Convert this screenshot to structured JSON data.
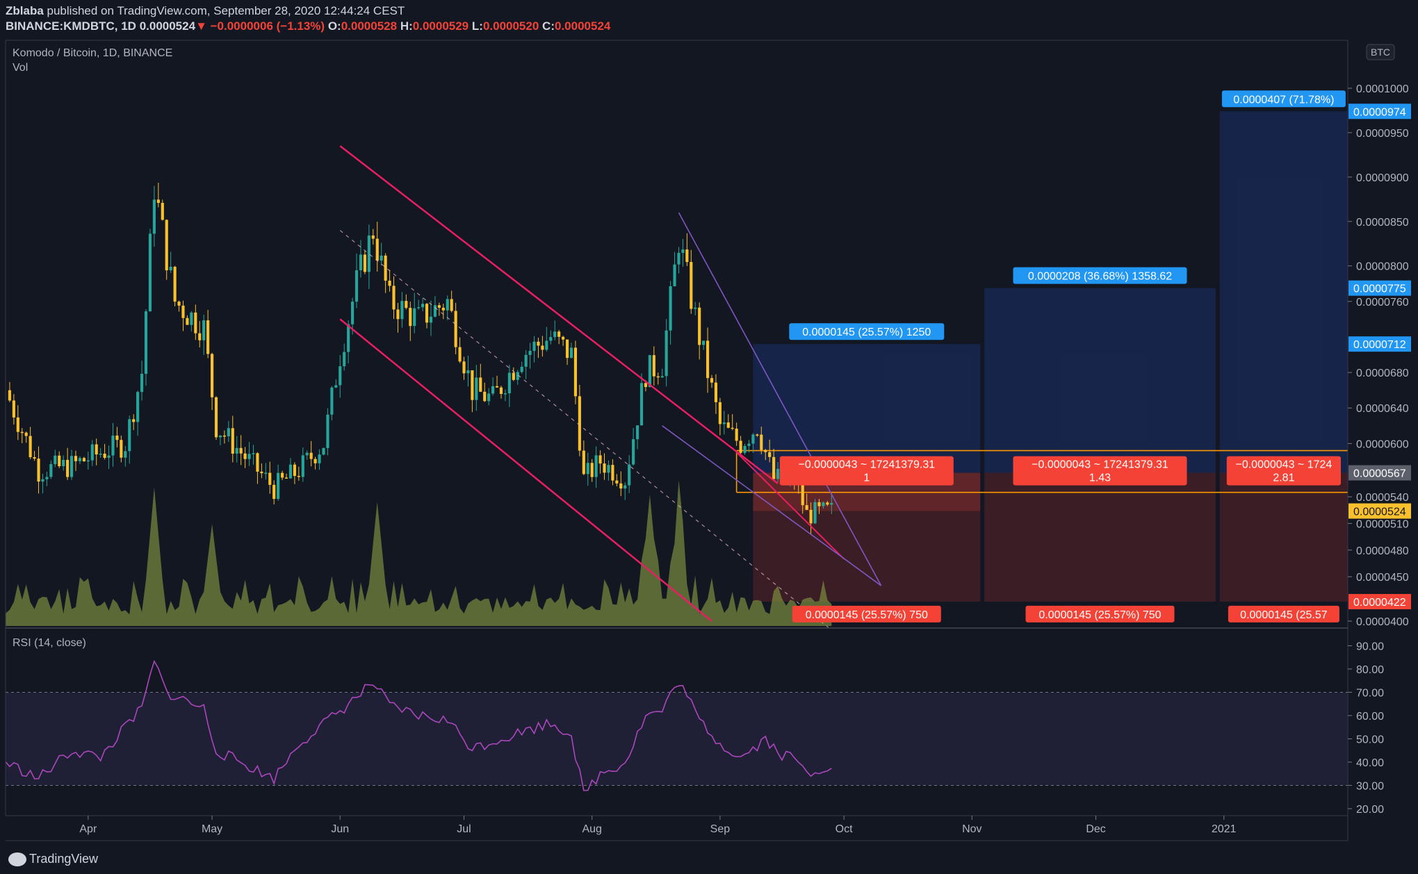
{
  "header": {
    "line1_user": "Zblaba",
    "line1_rest": " published on TradingView.com, September 28, 2020 12:44:24 CEST",
    "symbol": "BINANCE:KMDBTC, 1D",
    "last": "0.0000524",
    "change": "−0.0000006 (−1.13%)",
    "o_label": "O:",
    "o": "0.0000528",
    "h_label": "H:",
    "h": "0.0000529",
    "l_label": "L:",
    "l": "0.0000520",
    "c_label": "C:",
    "c": "0.0000524"
  },
  "footer": {
    "brand": "TradingView"
  },
  "colors": {
    "background": "#131722",
    "up": "#26a69a",
    "down": "#fbc02d",
    "target": "#2196f3",
    "stop": "#f44336",
    "channel": "#e91e63",
    "wedge": "#7e57c2",
    "rsi": "#ab47bc"
  },
  "chart_data": {
    "type": "candlestick",
    "title": "Komodo / Bitcoin, 1D, BINANCE",
    "volume_label": "Vol",
    "currency": "BTC",
    "price_axis_ticks": [
      "0.0001000",
      "0.0000950",
      "0.0000900",
      "0.0000850",
      "0.0000800",
      "0.0000760",
      "0.0000680",
      "0.0000640",
      "0.0000600",
      "0.0000540",
      "0.0000510",
      "0.0000480",
      "0.0000450",
      "0.0000400"
    ],
    "price_range": [
      3.93e-05,
      0.0001054
    ],
    "price_markers": [
      {
        "value": "0.0000974",
        "type": "target"
      },
      {
        "value": "0.0000775",
        "type": "target"
      },
      {
        "value": "0.0000712",
        "type": "target"
      },
      {
        "value": "0.0000567",
        "type": "entry"
      },
      {
        "value": "0.0000524",
        "type": "last"
      },
      {
        "value": "0.0000422",
        "type": "stop"
      }
    ],
    "time_axis": [
      "Apr",
      "May",
      "Jun",
      "Jul",
      "Aug",
      "Sep",
      "Oct",
      "Nov",
      "Dec",
      "2021"
    ],
    "time_range": [
      "2020-03-12",
      "2021-01-31"
    ],
    "price_path": [
      [
        "2020-03-12",
        6.6e-05
      ],
      [
        "2020-03-20",
        5.7e-05
      ],
      [
        "2020-03-28",
        5.75e-05
      ],
      [
        "2020-04-04",
        5.9e-05
      ],
      [
        "2020-04-10",
        6e-05
      ],
      [
        "2020-04-14",
        6.8e-05
      ],
      [
        "2020-04-17",
        8.9e-05
      ],
      [
        "2020-04-22",
        7.6e-05
      ],
      [
        "2020-04-29",
        7.3e-05
      ],
      [
        "2020-05-02",
        6.2e-05
      ],
      [
        "2020-05-10",
        5.8e-05
      ],
      [
        "2020-05-16",
        5.5e-05
      ],
      [
        "2020-05-22",
        5.7e-05
      ],
      [
        "2020-05-28",
        6e-05
      ],
      [
        "2020-06-01",
        7e-05
      ],
      [
        "2020-06-05",
        7.8e-05
      ],
      [
        "2020-06-09",
        8.4e-05
      ],
      [
        "2020-06-13",
        7.6e-05
      ],
      [
        "2020-06-20",
        7.4e-05
      ],
      [
        "2020-06-27",
        7.6e-05
      ],
      [
        "2020-07-03",
        6.6e-05
      ],
      [
        "2020-07-08",
        6.5e-05
      ],
      [
        "2020-07-15",
        7e-05
      ],
      [
        "2020-07-22",
        7.2e-05
      ],
      [
        "2020-07-27",
        7e-05
      ],
      [
        "2020-07-30",
        5.6e-05
      ],
      [
        "2020-08-03",
        5.8e-05
      ],
      [
        "2020-08-09",
        5.6e-05
      ],
      [
        "2020-08-14",
        6.8e-05
      ],
      [
        "2020-08-18",
        6.9e-05
      ],
      [
        "2020-08-22",
        8.3e-05
      ],
      [
        "2020-08-27",
        7.2e-05
      ],
      [
        "2020-09-01",
        6.2e-05
      ],
      [
        "2020-09-06",
        6e-05
      ],
      [
        "2020-09-10",
        6.2e-05
      ],
      [
        "2020-09-14",
        5.6e-05
      ],
      [
        "2020-09-19",
        5.6e-05
      ],
      [
        "2020-09-22",
        5.2e-05
      ],
      [
        "2020-09-28",
        5.24e-05
      ]
    ],
    "volume_peaks": [
      [
        "2020-04-17",
        0.95
      ],
      [
        "2020-05-01",
        0.7
      ],
      [
        "2020-06-10",
        0.85
      ],
      [
        "2020-08-15",
        0.9
      ],
      [
        "2020-08-22",
        0.85
      ]
    ],
    "projections": [
      {
        "target_label": "0.0000145 (25.57%) 1250",
        "stop_label": "0.0000145 (25.57%) 750",
        "risk_label_line1": "−0.0000043 ~ 17241379.31",
        "risk_label_line2": "1",
        "target_price": 7.12e-05,
        "entry_price": 5.67e-05,
        "stop_price": 4.22e-05
      },
      {
        "target_label": "0.0000208 (36.68%) 1358.62",
        "stop_label": "0.0000145 (25.57%) 750",
        "risk_label_line1": "−0.0000043 ~ 17241379.31",
        "risk_label_line2": "1.43",
        "target_price": 7.75e-05,
        "entry_price": 5.67e-05,
        "stop_price": 4.22e-05
      },
      {
        "target_label": "0.0000407 (71.78%)",
        "stop_label": "0.0000145 (25.57",
        "risk_label_line1": "−0.0000043 ~ 1724",
        "risk_label_line2": "2.81",
        "target_price": 9.74e-05,
        "entry_price": 5.67e-05,
        "stop_price": 4.22e-05
      }
    ],
    "rsi": {
      "label": "RSI (14, close)",
      "axis_ticks": [
        "90.00",
        "80.00",
        "70.00",
        "60.00",
        "50.00",
        "40.00",
        "30.00",
        "20.00"
      ],
      "range": [
        17,
        97
      ],
      "band": [
        30,
        70
      ],
      "path": [
        [
          "2020-03-12",
          40
        ],
        [
          "2020-03-20",
          33
        ],
        [
          "2020-03-28",
          45
        ],
        [
          "2020-04-04",
          42
        ],
        [
          "2020-04-10",
          55
        ],
        [
          "2020-04-14",
          63
        ],
        [
          "2020-04-17",
          83
        ],
        [
          "2020-04-20",
          70
        ],
        [
          "2020-04-29",
          63
        ],
        [
          "2020-05-02",
          45
        ],
        [
          "2020-05-16",
          33
        ],
        [
          "2020-05-22",
          48
        ],
        [
          "2020-06-01",
          62
        ],
        [
          "2020-06-09",
          74
        ],
        [
          "2020-06-13",
          64
        ],
        [
          "2020-06-20",
          60
        ],
        [
          "2020-06-27",
          58
        ],
        [
          "2020-07-03",
          46
        ],
        [
          "2020-07-15",
          53
        ],
        [
          "2020-07-22",
          57
        ],
        [
          "2020-07-27",
          52
        ],
        [
          "2020-07-30",
          26
        ],
        [
          "2020-08-03",
          35
        ],
        [
          "2020-08-09",
          40
        ],
        [
          "2020-08-14",
          60
        ],
        [
          "2020-08-18",
          62
        ],
        [
          "2020-08-22",
          75
        ],
        [
          "2020-08-27",
          58
        ],
        [
          "2020-09-01",
          48
        ],
        [
          "2020-09-06",
          42
        ],
        [
          "2020-09-12",
          50
        ],
        [
          "2020-09-16",
          43
        ],
        [
          "2020-09-19",
          42
        ],
        [
          "2020-09-22",
          35
        ],
        [
          "2020-09-28",
          39
        ]
      ]
    }
  }
}
